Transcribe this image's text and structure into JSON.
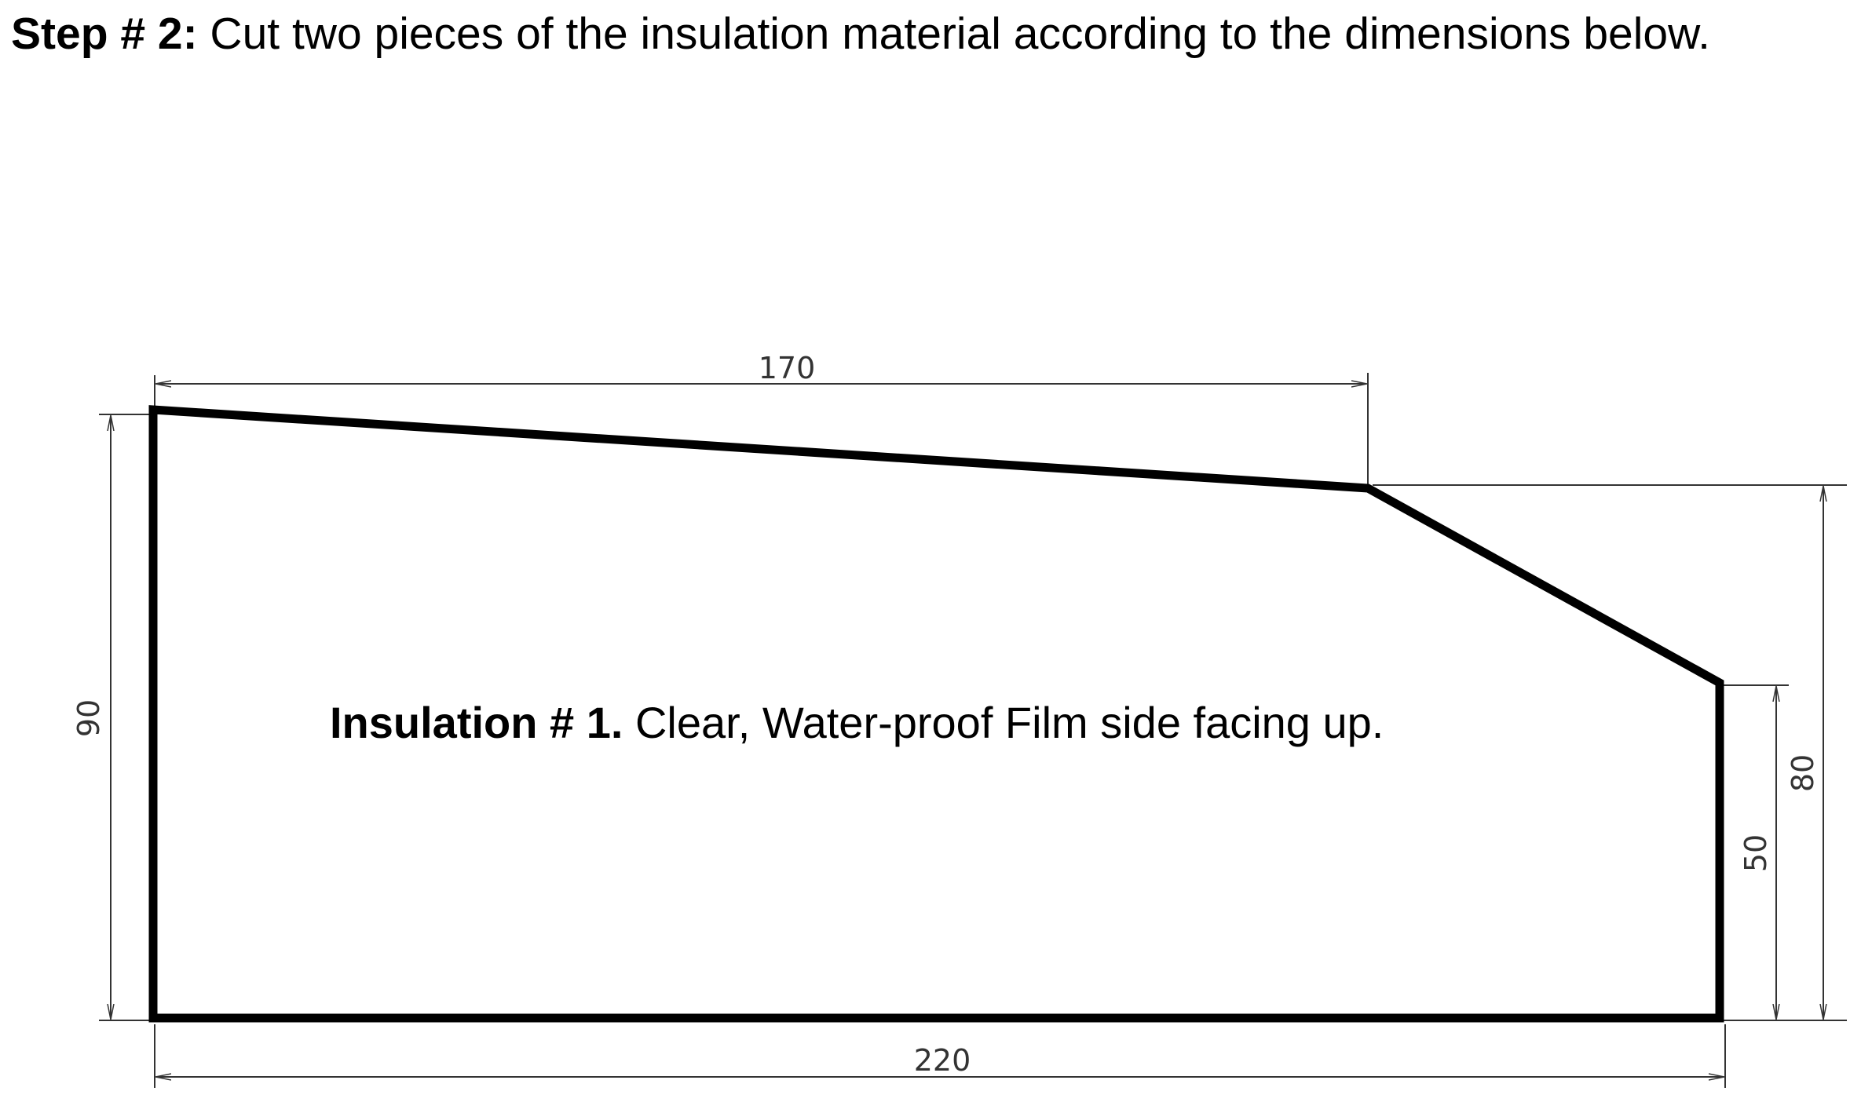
{
  "heading": {
    "step_label": "Step # 2:",
    "text": " Cut two pieces of the insulation material according to the dimensions below."
  },
  "piece": {
    "label_bold": "Insulation # 1.",
    "label_text": " Clear, Water-proof Film side facing up."
  },
  "dimensions": {
    "top": "170",
    "bottom": "220",
    "left": "90",
    "right_inner": "50",
    "right_outer": "80"
  },
  "colors": {
    "outline": "#000000",
    "dimension_line": "#333333"
  }
}
